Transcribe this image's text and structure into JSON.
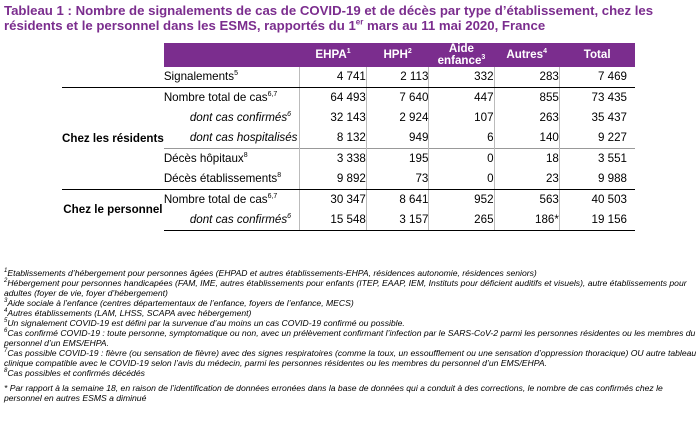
{
  "title": {
    "part1": "Tableau 1 : Nombre de signalements de cas de COVID-19 et de décès par type d’établissement, chez les résidents et le personnel dans les ESMS, rapportés du 1",
    "sup": "er",
    "part2": " mars au 11 mai 2020, France"
  },
  "headers": [
    {
      "label": "EHPA",
      "sup": "1"
    },
    {
      "label": "HPH",
      "sup": "2"
    },
    {
      "label_line1": "Aide",
      "label_line2": "enfance",
      "sup": "3"
    },
    {
      "label": "Autres",
      "sup": "4"
    },
    {
      "label": "Total",
      "sup": ""
    }
  ],
  "signalements": {
    "label": "Signalements",
    "sup": "5",
    "values": [
      "4 741",
      "2 113",
      "332",
      "283",
      "7 469"
    ]
  },
  "residents": {
    "group_label": "Chez les résidents",
    "rows": [
      {
        "label": "Nombre total de cas",
        "sup": "6,7",
        "values": [
          "64 493",
          "7 640",
          "447",
          "855",
          "73 435"
        ]
      },
      {
        "label": "dont cas confirmés",
        "sup": "6",
        "values": [
          "32 143",
          "2 924",
          "107",
          "263",
          "35 437"
        ]
      },
      {
        "label": "dont cas hospitalisés",
        "sup": "",
        "values": [
          "8 132",
          "949",
          "6",
          "140",
          "9 227"
        ]
      },
      {
        "label": "Décès hôpitaux",
        "sup": "8",
        "values": [
          "3 338",
          "195",
          "0",
          "18",
          "3 551"
        ]
      },
      {
        "label": "Décès établissements",
        "sup": "8",
        "values": [
          "9 892",
          "73",
          "0",
          "23",
          "9 988"
        ]
      }
    ]
  },
  "personnel": {
    "group_label": "Chez le personnel",
    "rows": [
      {
        "label": "Nombre total de cas",
        "sup": "6,7",
        "values": [
          "30 347",
          "8 641",
          "952",
          "563",
          "40 503"
        ]
      },
      {
        "label": "dont cas confirmés",
        "sup": "6",
        "values": [
          "15 548",
          "3 157",
          "265",
          "186*",
          "19 156"
        ]
      }
    ]
  },
  "notes": [
    {
      "n": "1",
      "text": "Etablissements d’hébergement pour personnes âgées (EHPAD et autres établissements-EHPA, résidences autonomie, résidences seniors)"
    },
    {
      "n": "2",
      "text": "Hébergement pour personnes handicapées (FAM, IME, autres établissements pour enfants (ITEP, EAAP, IEM, Instituts pour déficient auditifs et visuels), autre établissements pour adultes (foyer de vie, foyer d’hébergement)"
    },
    {
      "n": "3",
      "text": "Aide sociale à l’enfance (centres départementaux de l’enfance, foyers de l’enfance, MECS)"
    },
    {
      "n": "4",
      "text": "Autres établissements (LAM, LHSS, SCAPA avec hébergement)"
    },
    {
      "n": "5",
      "text": "Un signalement COVID-19 est défini par la survenue d’au moins un cas COVID-19 confirmé ou possible."
    },
    {
      "n": "6",
      "text": "Cas confirmé COVID-19 : toute personne, symptomatique ou non, avec un prélèvement confirmant l’infection par le SARS-CoV-2 parmi les personnes résidentes ou les membres du personnel d’un EMS/EHPA."
    },
    {
      "n": "7",
      "text": "Cas possible COVID-19 : fièvre (ou sensation de fièvre) avec des signes respiratoires (comme la toux, un essoufflement ou une sensation d’oppression thoracique) OU autre tableau clinique compatible avec le COVID-19 selon l’avis du médecin, parmi les personnes résidentes ou les membres du personnel d’un EMS/EHPA."
    },
    {
      "n": "8",
      "text": "Cas possibles et confirmés décédés"
    }
  ],
  "star_note": "* Par rapport à la semaine 18, en raison de l’identification de données erronées dans la base de données qui a conduit à des corrections, le nombre de cas confirmés chez le personnel en autres ESMS a diminué"
}
